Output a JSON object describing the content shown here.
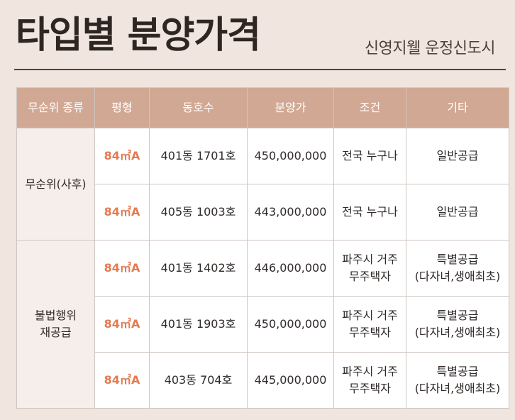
{
  "header": {
    "title": "타입별 분양가격",
    "subtitle": "신영지웰 운정신도시"
  },
  "table": {
    "columns": [
      "무순위 종류",
      "평형",
      "동호수",
      "분양가",
      "조건",
      "기타"
    ],
    "groups": [
      {
        "label_lines": [
          "무순위(사후)"
        ],
        "rows": [
          {
            "size": "84㎡A",
            "unit": "401동 1701호",
            "price": "450,000,000",
            "condition_lines": [
              "전국 누구나"
            ],
            "etc_lines": [
              "일반공급"
            ]
          },
          {
            "size": "84㎡A",
            "unit": "405동 1003호",
            "price": "443,000,000",
            "condition_lines": [
              "전국 누구나"
            ],
            "etc_lines": [
              "일반공급"
            ]
          }
        ]
      },
      {
        "label_lines": [
          "불법행위",
          "재공급"
        ],
        "rows": [
          {
            "size": "84㎡A",
            "unit": "401동 1402호",
            "price": "446,000,000",
            "condition_lines": [
              "파주시 거주",
              "무주택자"
            ],
            "etc_lines": [
              "특별공급",
              "(다자녀,생애최초)"
            ]
          },
          {
            "size": "84㎡A",
            "unit": "401동 1903호",
            "price": "450,000,000",
            "condition_lines": [
              "파주시 거주",
              "무주택자"
            ],
            "etc_lines": [
              "특별공급",
              "(다자녀,생애최초)"
            ]
          },
          {
            "size": "84㎡A",
            "unit": "403동 704호",
            "price": "445,000,000",
            "condition_lines": [
              "파주시 거주",
              "무주택자"
            ],
            "etc_lines": [
              "특별공급",
              "(다자녀,생애최초)"
            ]
          }
        ]
      }
    ]
  },
  "colors": {
    "background": "#f1e6df",
    "header_bg": "#d1a894",
    "size_text": "#e47a52",
    "title_text": "#2e2622"
  }
}
